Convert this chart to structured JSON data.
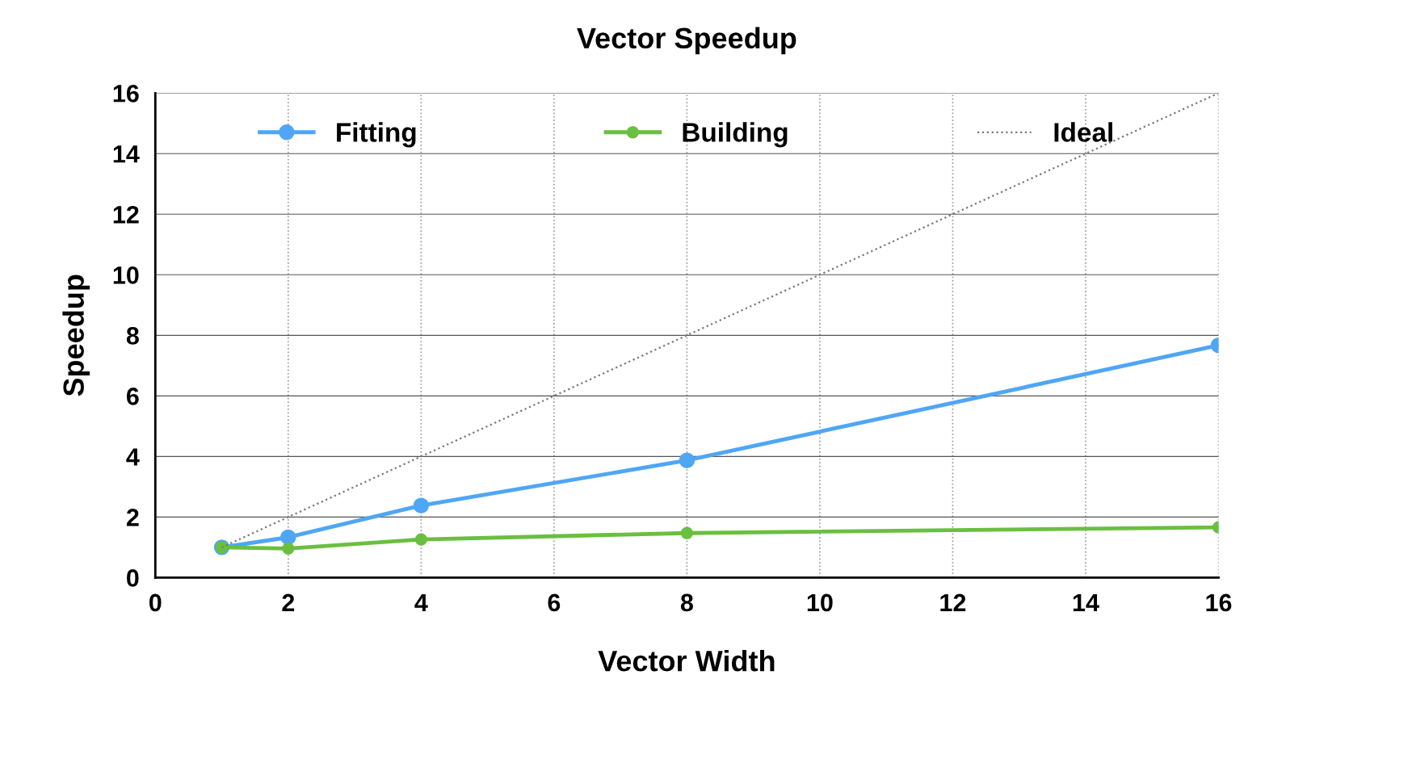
{
  "chart_data": {
    "type": "line",
    "title": "Vector Speedup",
    "xlabel": "Vector Width",
    "ylabel": "Speedup",
    "x": [
      1,
      2,
      4,
      8,
      16
    ],
    "series": [
      {
        "name": "Fitting",
        "color": "#4fa6f5",
        "marker": "circle",
        "line_style": "solid",
        "values": [
          1.0,
          1.33,
          2.38,
          3.87,
          7.67
        ]
      },
      {
        "name": "Building",
        "color": "#6abf3f",
        "marker": "circle",
        "line_style": "solid",
        "values": [
          1.0,
          0.96,
          1.26,
          1.47,
          1.66
        ]
      },
      {
        "name": "Ideal",
        "color": "#777777",
        "marker": "none",
        "line_style": "dotted",
        "values": [
          1,
          2,
          4,
          8,
          16
        ]
      }
    ],
    "xlim": [
      0,
      16
    ],
    "xticks": [
      0,
      2,
      4,
      6,
      8,
      10,
      12,
      14,
      16
    ],
    "ylim": [
      0,
      16
    ],
    "yticks": [
      0,
      2,
      4,
      6,
      8,
      10,
      12,
      14,
      16
    ],
    "grid": true,
    "legend": "top"
  }
}
